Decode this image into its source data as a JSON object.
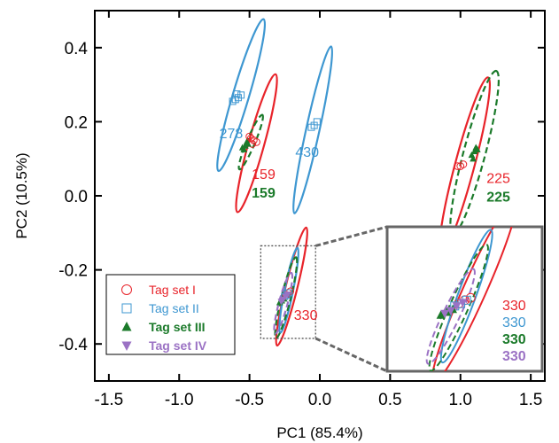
{
  "chart_data": {
    "type": "scatter",
    "xlabel": "PC1 (85.4%)",
    "ylabel": "PC2 (10.5%)",
    "xlim": [
      -1.6,
      1.6
    ],
    "ylim": [
      -0.5,
      0.5
    ],
    "xticks": [
      "-1.5",
      "-1.0",
      "-0.5",
      "0.0",
      "0.5",
      "1.0",
      "1.5"
    ],
    "yticks": [
      "-0.4",
      "-0.2",
      "0.0",
      "0.2",
      "0.4"
    ],
    "xtick_values": [
      -1.5,
      -1.0,
      -0.5,
      0.0,
      0.5,
      1.0,
      1.5
    ],
    "ytick_values": [
      -0.4,
      -0.2,
      0.0,
      0.2,
      0.4
    ],
    "legend_position": "bottom-left",
    "series": [
      {
        "name": "Tag set I",
        "color": "#e8232a",
        "marker": "open-circle",
        "bold": false,
        "points": [
          [
            -0.47,
            0.15
          ],
          [
            -0.49,
            0.155
          ],
          [
            -0.45,
            0.145
          ],
          [
            -0.5,
            0.16
          ],
          [
            -0.48,
            0.14
          ],
          [
            0.98,
            0.08
          ],
          [
            1.0,
            0.08
          ],
          [
            1.02,
            0.085
          ],
          [
            -0.24,
            -0.268
          ],
          [
            -0.225,
            -0.262
          ],
          [
            -0.21,
            -0.258
          ]
        ]
      },
      {
        "name": "Tag set II",
        "color": "#3e97d1",
        "marker": "open-square",
        "bold": false,
        "points": [
          [
            -0.6,
            0.26
          ],
          [
            -0.58,
            0.265
          ],
          [
            -0.56,
            0.272
          ],
          [
            -0.62,
            0.255
          ],
          [
            -0.59,
            0.275
          ],
          [
            -0.06,
            0.185
          ],
          [
            -0.04,
            0.19
          ],
          [
            -0.02,
            0.2
          ],
          [
            -0.25,
            -0.272
          ],
          [
            -0.235,
            -0.268
          ],
          [
            -0.22,
            -0.262
          ]
        ]
      },
      {
        "name": "Tag set III",
        "color": "#1b7a2a",
        "marker": "filled-triangle-up",
        "bold": true,
        "points": [
          [
            -0.55,
            0.13
          ],
          [
            -0.53,
            0.135
          ],
          [
            -0.51,
            0.14
          ],
          [
            -0.54,
            0.125
          ],
          [
            -0.52,
            0.145
          ],
          [
            1.08,
            0.11
          ],
          [
            1.1,
            0.12
          ],
          [
            1.12,
            0.125
          ],
          [
            1.09,
            0.1
          ],
          [
            1.11,
            0.13
          ],
          [
            -0.285,
            -0.288
          ],
          [
            -0.27,
            -0.283
          ],
          [
            -0.255,
            -0.278
          ]
        ]
      },
      {
        "name": "Tag set IV",
        "color": "#9b72c4",
        "marker": "filled-triangle-down",
        "bold": true,
        "points": [
          [
            -0.275,
            -0.285
          ],
          [
            -0.26,
            -0.28
          ],
          [
            -0.245,
            -0.272
          ],
          [
            -0.23,
            -0.266
          ]
        ]
      }
    ],
    "ellipses": [
      {
        "cx": -0.56,
        "cy": 0.272,
        "rx": 0.26,
        "ry": 0.032,
        "angle": 52,
        "color": "#3e97d1",
        "dashed": false
      },
      {
        "cx": -0.45,
        "cy": 0.142,
        "rx": 0.23,
        "ry": 0.032,
        "angle": 54,
        "color": "#e8232a",
        "dashed": false
      },
      {
        "cx": -0.49,
        "cy": 0.145,
        "rx": 0.11,
        "ry": 0.014,
        "angle": 42,
        "color": "#1b7a2a",
        "dashed": true
      },
      {
        "cx": -0.05,
        "cy": 0.178,
        "rx": 0.26,
        "ry": 0.03,
        "angle": 60,
        "color": "#3e97d1",
        "dashed": false
      },
      {
        "cx": 1.03,
        "cy": 0.082,
        "rx": 0.29,
        "ry": 0.04,
        "angle": 55,
        "color": "#e8232a",
        "dashed": false
      },
      {
        "cx": 1.1,
        "cy": 0.116,
        "rx": 0.27,
        "ry": 0.045,
        "angle": 55,
        "color": "#1b7a2a",
        "dashed": true
      },
      {
        "cx": -0.2,
        "cy": -0.245,
        "rx": 0.19,
        "ry": 0.025,
        "angle": 57,
        "color": "#e8232a",
        "dashed": false
      },
      {
        "cx": -0.22,
        "cy": -0.255,
        "rx": 0.13,
        "ry": 0.02,
        "angle": 62,
        "color": "#3e97d1",
        "dashed": false
      },
      {
        "cx": -0.24,
        "cy": -0.275,
        "rx": 0.13,
        "ry": 0.02,
        "angle": 57,
        "color": "#1b7a2a",
        "dashed": true
      },
      {
        "cx": -0.26,
        "cy": -0.29,
        "rx": 0.1,
        "ry": 0.018,
        "angle": 55,
        "color": "#9b72c4",
        "dashed": true
      }
    ],
    "annotations": [
      {
        "text": "278",
        "x": -0.63,
        "y": 0.155,
        "color": "#3e97d1",
        "bold": false
      },
      {
        "text": "159",
        "x": -0.4,
        "y": 0.045,
        "color": "#e8232a",
        "bold": false
      },
      {
        "text": "159",
        "x": -0.4,
        "y": -0.005,
        "color": "#1b7a2a",
        "bold": true
      },
      {
        "text": "430",
        "x": -0.09,
        "y": 0.105,
        "color": "#3e97d1",
        "bold": false
      },
      {
        "text": "225",
        "x": 1.27,
        "y": 0.035,
        "color": "#e8232a",
        "bold": false
      },
      {
        "text": "225",
        "x": 1.27,
        "y": -0.015,
        "color": "#1b7a2a",
        "bold": true
      },
      {
        "text": "330",
        "x": -0.1,
        "y": -0.335,
        "color": "#e8232a",
        "bold": false
      }
    ],
    "inset": {
      "source_box_x": [
        -0.42,
        -0.03
      ],
      "source_box_y": [
        -0.385,
        -0.135
      ],
      "labels": [
        {
          "text": "330",
          "color": "#e8232a",
          "bold": false
        },
        {
          "text": "330",
          "color": "#3e97d1",
          "bold": false
        },
        {
          "text": "330",
          "color": "#1b7a2a",
          "bold": true
        },
        {
          "text": "330",
          "color": "#9b72c4",
          "bold": true
        }
      ]
    }
  }
}
